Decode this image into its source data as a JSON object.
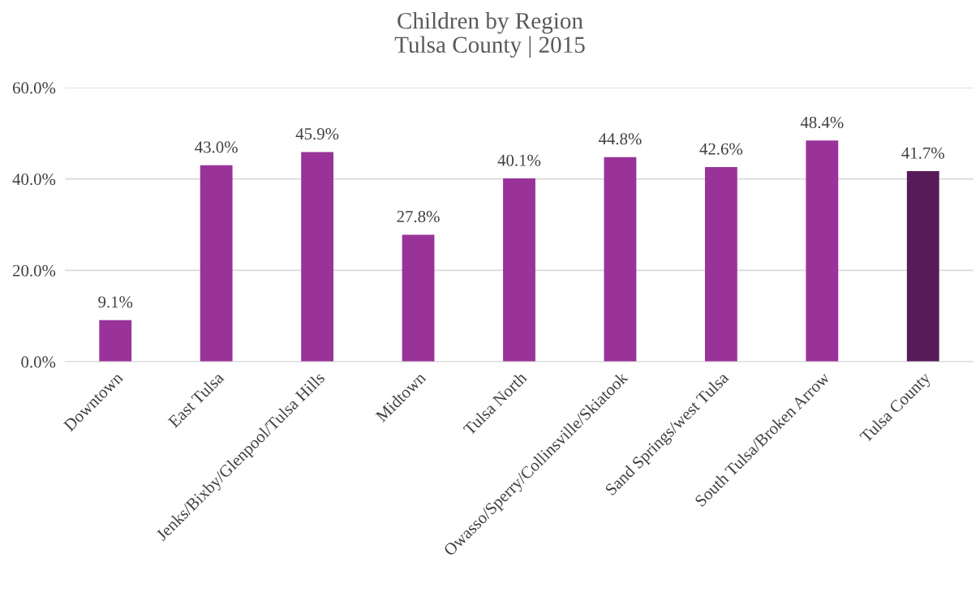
{
  "chart_data": {
    "type": "bar",
    "title": "Children by Region\nTulsa County | 2015",
    "categories": [
      "Downtown",
      "East Tulsa",
      "Jenks/Bixby/Glenpool/Tulsa Hills",
      "Midtown",
      "Tulsa North",
      "Owasso/Sperry/Collinsville/Skiatook",
      "Sand Springs/west Tulsa",
      "South Tulsa/Broken Arrow",
      "Tulsa County"
    ],
    "values": [
      9.1,
      43.0,
      45.9,
      27.8,
      40.1,
      44.8,
      42.6,
      48.4,
      41.7
    ],
    "value_labels": [
      "9.1%",
      "43.0%",
      "45.9%",
      "27.8%",
      "40.1%",
      "44.8%",
      "42.6%",
      "48.4%",
      "41.7%"
    ],
    "colors": [
      "#993399",
      "#993399",
      "#993399",
      "#993399",
      "#993399",
      "#993399",
      "#993399",
      "#993399",
      "#561c5a"
    ],
    "ylim": [
      0,
      60
    ],
    "yticks": [
      {
        "value": 0,
        "label": "0.0%"
      },
      {
        "value": 20,
        "label": "20.0%"
      },
      {
        "value": 40,
        "label": "40.0%"
      },
      {
        "value": 60,
        "label": "60.0%"
      }
    ],
    "grid": "y",
    "legend": false
  }
}
